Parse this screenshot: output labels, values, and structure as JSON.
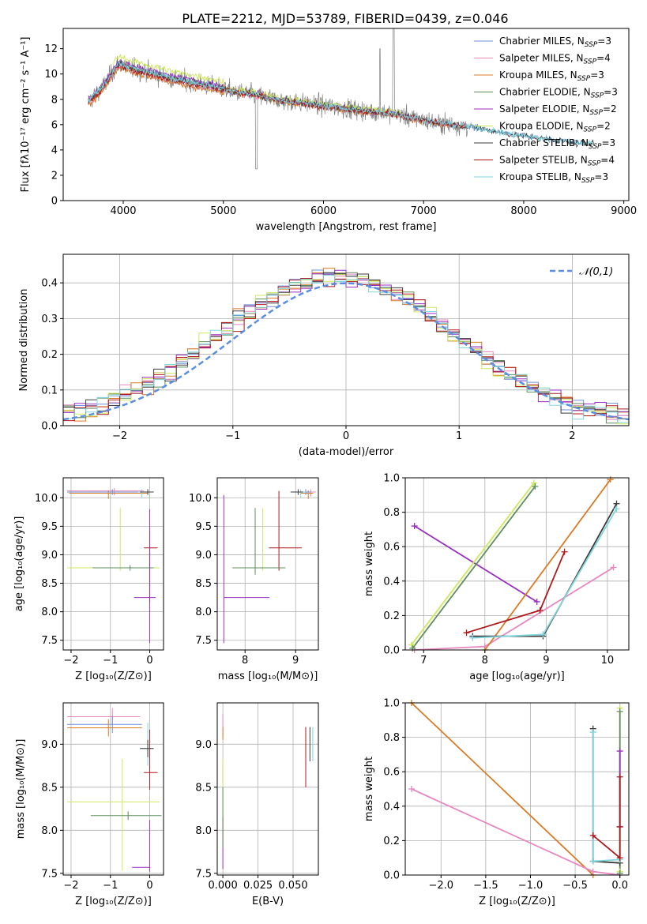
{
  "figure": {
    "title": "PLATE=2212, MJD=53789, FIBERID=0439, z=0.046"
  },
  "colors": {
    "grid": "#b0b0b0",
    "axis": "#000000",
    "data": "#808080"
  },
  "chart_data": [
    {
      "id": "spectrum",
      "type": "line",
      "title": "PLATE=2212, MJD=53789, FIBERID=0439, z=0.046",
      "xlabel": "wavelength [Angstrom, rest frame]",
      "ylabel": "Flux [fλ10⁻¹⁷ erg cm⁻² s⁻¹ A⁻¹]",
      "xlim": [
        3400,
        9050
      ],
      "ylim": [
        0,
        13.6
      ],
      "xticks": [
        4000,
        5000,
        6000,
        7000,
        8000,
        9000
      ],
      "yticks": [
        0,
        2,
        4,
        6,
        8,
        10,
        12
      ],
      "grid": false,
      "legend_position": "top-right",
      "data_anchors": {
        "x": [
          3650,
          3800,
          3950,
          4100,
          4300,
          4500,
          4700,
          4900,
          5100,
          5300,
          5500,
          5700,
          5900,
          6100,
          6300,
          6500,
          6700,
          6900,
          7100,
          7300,
          7500,
          7700,
          7900,
          8100,
          8300,
          8500,
          8700
        ],
        "y": [
          7.8,
          9.0,
          10.8,
          10.4,
          10.0,
          9.6,
          9.3,
          9.0,
          8.6,
          8.4,
          8.0,
          7.8,
          7.6,
          7.4,
          7.2,
          7.0,
          6.9,
          6.5,
          6.2,
          6.0,
          5.8,
          5.5,
          5.2,
          5.0,
          4.8,
          4.6,
          4.5
        ]
      },
      "series": [
        {
          "name": "Chabrier MILES",
          "nssp": "3",
          "color": "#6f8fd8"
        },
        {
          "name": "Salpeter MILES",
          "nssp": "4",
          "color": "#e887c0"
        },
        {
          "name": "Kroupa MILES",
          "nssp": "3",
          "color": "#d97a24"
        },
        {
          "name": "Chabrier ELODIE",
          "nssp": "3",
          "color": "#5e8e5e"
        },
        {
          "name": "Salpeter ELODIE",
          "nssp": "2",
          "color": "#9a2fc0"
        },
        {
          "name": "Kroupa ELODIE",
          "nssp": "2",
          "color": "#cde85a"
        },
        {
          "name": "Chabrier STELIB",
          "nssp": "3",
          "color": "#3d3d3d"
        },
        {
          "name": "Salpeter STELIB",
          "nssp": "4",
          "color": "#b0181c"
        },
        {
          "name": "Kroupa STELIB",
          "nssp": "3",
          "color": "#7fd6dd"
        }
      ]
    },
    {
      "id": "residuals",
      "type": "line",
      "xlabel": "(data-model)/error",
      "ylabel": "Normed distribution",
      "xlim": [
        -2.5,
        2.5
      ],
      "ylim": [
        0,
        0.48
      ],
      "xticks": [
        -2,
        -1,
        0,
        1,
        2
      ],
      "yticks": [
        0.0,
        0.1,
        0.2,
        0.3,
        0.4
      ],
      "grid": true,
      "legend_position": "top-right",
      "legend": [
        "𝒩(0,1)"
      ],
      "gaussian": {
        "mean": 0,
        "sigma": 1,
        "color": "#5b8ee0"
      },
      "bin_width": 0.1
    },
    {
      "id": "age-vs-Z",
      "type": "scatter",
      "xlabel": "Z [log₁₀(Z/Z⊙)]",
      "ylabel": "age  [log₁₀(age/yr)]",
      "xlim": [
        -2.2,
        0.35
      ],
      "ylim": [
        7.33,
        10.35
      ],
      "xticks": [
        -2,
        -1,
        0
      ],
      "yticks": [
        7.5,
        8.0,
        8.5,
        9.0,
        9.5,
        10.0
      ],
      "grid": true,
      "errorbars": [
        {
          "color": "#e887c0",
          "x": -0.9,
          "xerr": [
            1.2,
            0.75
          ],
          "y": 10.12,
          "yerr": [
            0.08,
            0.05
          ]
        },
        {
          "color": "#d97a24",
          "x": -1.05,
          "xerr": [
            1.0,
            1.0
          ],
          "y": 10.08,
          "yerr": [
            0.1,
            0.05
          ]
        },
        {
          "color": "#6f8fd8",
          "x": -0.95,
          "xerr": [
            1.15,
            0.85
          ],
          "y": 10.1,
          "yerr": [
            0.05,
            0.05
          ]
        },
        {
          "color": "#7fd6dd",
          "x": -0.2,
          "xerr": [
            0.1,
            0.3
          ],
          "y": 10.1,
          "yerr": [
            0.1,
            0.05
          ]
        },
        {
          "color": "#3d3d3d",
          "x": -0.05,
          "xerr": [
            0.2,
            0.15
          ],
          "y": 10.1,
          "yerr": [
            0.05,
            0.05
          ]
        },
        {
          "color": "#b0181c",
          "x": 0.0,
          "xerr": [
            0.15,
            0.2
          ],
          "y": 9.12,
          "yerr": [
            0.95,
            0.3
          ]
        },
        {
          "color": "#cde85a",
          "x": -0.75,
          "xerr": [
            1.35,
            1.0
          ],
          "y": 8.77,
          "yerr": [
            0.05,
            1.05
          ]
        },
        {
          "color": "#5e8e5e",
          "x": -0.5,
          "xerr": [
            0.95,
            0.6
          ],
          "y": 8.77,
          "yerr": [
            0.05,
            0.05
          ]
        },
        {
          "color": "#9a2fc0",
          "x": 0.0,
          "xerr": [
            0.4,
            0.15
          ],
          "y": 8.25,
          "yerr": [
            0.8,
            1.55
          ]
        }
      ]
    },
    {
      "id": "age-vs-mass",
      "type": "scatter",
      "xlabel": "mass [log₁₀(M/M⊙)]",
      "ylabel": "",
      "xlim": [
        7.45,
        9.45
      ],
      "ylim": [
        7.33,
        10.35
      ],
      "xticks": [
        8,
        9
      ],
      "yticks": [
        7.5,
        8.0,
        8.5,
        9.0,
        9.5,
        10.0
      ],
      "grid": true,
      "errorbars": [
        {
          "color": "#e887c0",
          "x": 9.3,
          "xerr": [
            0.15,
            0.1
          ],
          "y": 10.1,
          "yerr": [
            0.08,
            0.05
          ]
        },
        {
          "color": "#d97a24",
          "x": 9.25,
          "xerr": [
            0.15,
            0.1
          ],
          "y": 10.08,
          "yerr": [
            0.1,
            0.05
          ]
        },
        {
          "color": "#6f8fd8",
          "x": 9.2,
          "xerr": [
            0.2,
            0.1
          ],
          "y": 10.1,
          "yerr": [
            0.05,
            0.05
          ]
        },
        {
          "color": "#7fd6dd",
          "x": 9.1,
          "xerr": [
            0.15,
            0.1
          ],
          "y": 10.1,
          "yerr": [
            0.1,
            0.05
          ]
        },
        {
          "color": "#3d3d3d",
          "x": 9.05,
          "xerr": [
            0.15,
            0.1
          ],
          "y": 10.1,
          "yerr": [
            0.05,
            0.05
          ]
        },
        {
          "color": "#b0181c",
          "x": 8.67,
          "xerr": [
            0.2,
            0.45
          ],
          "y": 9.12,
          "yerr": [
            0.4,
            1.0
          ]
        },
        {
          "color": "#cde85a",
          "x": 8.35,
          "xerr": [
            0.2,
            0.35
          ],
          "y": 8.77,
          "yerr": [
            0.05,
            1.05
          ]
        },
        {
          "color": "#5e8e5e",
          "x": 8.2,
          "xerr": [
            0.45,
            0.6
          ],
          "y": 8.77,
          "yerr": [
            0.12,
            1.05
          ]
        },
        {
          "color": "#9a2fc0",
          "x": 7.58,
          "xerr": [
            0.0,
            0.9
          ],
          "y": 8.25,
          "yerr": [
            0.8,
            1.8
          ]
        }
      ]
    },
    {
      "id": "massweight-vs-age",
      "type": "line",
      "xlabel": "age  [log₁₀(age/yr)]",
      "ylabel": "mass weight",
      "xlim": [
        6.7,
        10.35
      ],
      "ylim": [
        0,
        1.0
      ],
      "xticks": [
        7,
        8,
        9,
        10
      ],
      "yticks": [
        0.0,
        0.2,
        0.4,
        0.6,
        0.8,
        1.0
      ],
      "grid": true,
      "series": [
        {
          "color": "#e887c0",
          "x": [
            6.85,
            8.0,
            10.1
          ],
          "y": [
            0.0,
            0.02,
            0.48
          ]
        },
        {
          "color": "#9a2fc0",
          "x": [
            6.85,
            8.85
          ],
          "y": [
            0.72,
            0.28
          ]
        },
        {
          "color": "#d97a24",
          "x": [
            8.0,
            10.05
          ],
          "y": [
            0.0,
            0.99
          ]
        },
        {
          "color": "#cde85a",
          "x": [
            6.8,
            8.8
          ],
          "y": [
            0.03,
            0.97
          ]
        },
        {
          "color": "#5e8e5e",
          "x": [
            6.82,
            8.82
          ],
          "y": [
            0.01,
            0.95
          ]
        },
        {
          "color": "#3d3d3d",
          "x": [
            7.8,
            8.95,
            10.15
          ],
          "y": [
            0.08,
            0.08,
            0.85
          ]
        },
        {
          "color": "#7fd6dd",
          "x": [
            7.8,
            8.95,
            10.15
          ],
          "y": [
            0.07,
            0.09,
            0.82
          ]
        },
        {
          "color": "#b0181c",
          "x": [
            7.7,
            8.9,
            9.3
          ],
          "y": [
            0.1,
            0.23,
            0.57
          ]
        }
      ]
    },
    {
      "id": "mass-vs-Z",
      "type": "scatter",
      "xlabel": "Z [log₁₀(Z/Z⊙)]",
      "ylabel": "mass [log₁₀(M/M⊙)]",
      "xlim": [
        -2.2,
        0.35
      ],
      "ylim": [
        7.48,
        9.48
      ],
      "xticks": [
        -2,
        -1,
        0
      ],
      "yticks": [
        7.5,
        8.0,
        8.5,
        9.0
      ],
      "grid": true,
      "errorbars": [
        {
          "color": "#e887c0",
          "x": -0.95,
          "xerr": [
            1.15,
            0.7
          ],
          "y": 9.32,
          "yerr": [
            0.1,
            0.1
          ]
        },
        {
          "color": "#6f8fd8",
          "x": -0.95,
          "xerr": [
            1.15,
            0.75
          ],
          "y": 9.23,
          "yerr": [
            0.1,
            0.1
          ]
        },
        {
          "color": "#d97a24",
          "x": -1.05,
          "xerr": [
            1.05,
            0.85
          ],
          "y": 9.19,
          "yerr": [
            0.1,
            0.1
          ]
        },
        {
          "color": "#7fd6dd",
          "x": -0.05,
          "xerr": [
            0.2,
            0.15
          ],
          "y": 8.95,
          "yerr": [
            0.2,
            0.3
          ]
        },
        {
          "color": "#3d3d3d",
          "x": -0.05,
          "xerr": [
            0.2,
            0.15
          ],
          "y": 8.95,
          "yerr": [
            0.1,
            0.1
          ]
        },
        {
          "color": "#b0181c",
          "x": 0.0,
          "xerr": [
            0.15,
            0.2
          ],
          "y": 8.67,
          "yerr": [
            0.2,
            0.5
          ]
        },
        {
          "color": "#cde85a",
          "x": -0.7,
          "xerr": [
            1.4,
            0.95
          ],
          "y": 8.33,
          "yerr": [
            0.8,
            0.5
          ]
        },
        {
          "color": "#5e8e5e",
          "x": -0.55,
          "xerr": [
            0.95,
            0.85
          ],
          "y": 8.17,
          "yerr": [
            0.05,
            0.05
          ]
        },
        {
          "color": "#9a2fc0",
          "x": 0.0,
          "xerr": [
            0.45,
            0.0
          ],
          "y": 7.57,
          "yerr": [
            0.05,
            0.55
          ]
        }
      ]
    },
    {
      "id": "ebv",
      "type": "scatter",
      "xlabel": "E(B-V)",
      "ylabel": "",
      "xlim": [
        -0.004,
        0.068
      ],
      "ylim": [
        7.48,
        9.48
      ],
      "xticks": [
        0.0,
        0.025,
        0.05
      ],
      "xticklabels": [
        "0.000",
        "0.025",
        "0.050"
      ],
      "yticks": [
        7.5,
        8.0,
        8.5,
        9.0
      ],
      "grid": true,
      "errorbars": [
        {
          "color": "#e887c0",
          "x": 0.0,
          "y": 9.25,
          "yerr": [
            0.15,
            0.1
          ]
        },
        {
          "color": "#d97a24",
          "x": 0.0,
          "y": 9.15,
          "yerr": [
            0.1,
            0.05
          ]
        },
        {
          "color": "#cde85a",
          "x": 0.0,
          "y": 8.33,
          "yerr": [
            0.5,
            0.5
          ]
        },
        {
          "color": "#9a2fc0",
          "x": 0.0,
          "y": 7.85,
          "yerr": [
            0.3,
            0.3
          ]
        },
        {
          "color": "#5e8e5e",
          "x": 0.0,
          "y": 8.2,
          "yerr": [
            0.4,
            0.3
          ]
        },
        {
          "color": "#b0181c",
          "x": 0.059,
          "y": 8.85,
          "yerr": [
            0.35,
            0.35
          ]
        },
        {
          "color": "#7fd6dd",
          "x": 0.064,
          "y": 9.0,
          "yerr": [
            0.2,
            0.2
          ]
        },
        {
          "color": "#3d3d3d",
          "x": 0.062,
          "y": 9.0,
          "yerr": [
            0.2,
            0.2
          ]
        }
      ]
    },
    {
      "id": "massweight-vs-Z",
      "type": "line",
      "xlabel": "Z [log₁₀(Z/Z⊙)]",
      "ylabel": "mass weight",
      "xlim": [
        -2.4,
        0.1
      ],
      "ylim": [
        0,
        1.0
      ],
      "xticks": [
        -2.0,
        -1.5,
        -1.0,
        -0.5,
        0.0
      ],
      "xticklabels": [
        "−2.0",
        "−1.5",
        "−1.0",
        "−0.5",
        "0.0"
      ],
      "yticks": [
        0.0,
        0.2,
        0.4,
        0.6,
        0.8,
        1.0
      ],
      "grid": true,
      "series": [
        {
          "color": "#d97a24",
          "x": [
            -2.33,
            -0.3
          ],
          "y": [
            1.0,
            0.0
          ]
        },
        {
          "color": "#e887c0",
          "x": [
            -2.33,
            -0.3,
            0.0
          ],
          "y": [
            0.5,
            0.02,
            0.0
          ]
        },
        {
          "color": "#3d3d3d",
          "x": [
            -0.3,
            -0.3,
            0.0
          ],
          "y": [
            0.85,
            0.08,
            0.07
          ]
        },
        {
          "color": "#7fd6dd",
          "x": [
            -0.3,
            -0.3,
            0.0
          ],
          "y": [
            0.83,
            0.08,
            0.09
          ]
        },
        {
          "color": "#cde85a",
          "x": [
            0.0,
            0.0
          ],
          "y": [
            0.97,
            0.02
          ]
        },
        {
          "color": "#5e8e5e",
          "x": [
            0.0,
            0.0
          ],
          "y": [
            0.95,
            0.01
          ]
        },
        {
          "color": "#9a2fc0",
          "x": [
            0.0,
            0.0
          ],
          "y": [
            0.72,
            0.28
          ]
        },
        {
          "color": "#b0181c",
          "x": [
            -0.3,
            0.0,
            0.0,
            0.0
          ],
          "y": [
            0.23,
            0.1,
            0.57,
            0.28
          ]
        }
      ]
    }
  ]
}
